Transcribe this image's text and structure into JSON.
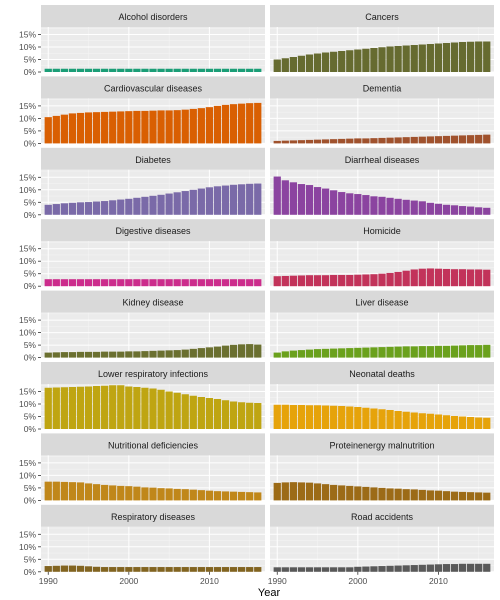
{
  "chart_data": {
    "type": "bar",
    "xlabel": "Year",
    "ylabel": "",
    "ylim": [
      0,
      18
    ],
    "y_ticks": [
      0,
      5,
      10,
      15
    ],
    "y_tick_labels": [
      "0%",
      "5%",
      "10%",
      "15%"
    ],
    "x_ticks": [
      1990,
      2000,
      2010
    ],
    "x_tick_labels": [
      "1990",
      "2000",
      "2010"
    ],
    "x": [
      1990,
      1991,
      1992,
      1993,
      1994,
      1995,
      1996,
      1997,
      1998,
      1999,
      2000,
      2001,
      2002,
      2003,
      2004,
      2005,
      2006,
      2007,
      2008,
      2009,
      2010,
      2011,
      2012,
      2013,
      2014,
      2015,
      2016
    ],
    "grid": true,
    "facet_layout": "8 rows x 2 columns",
    "series": [
      {
        "name": "Alcohol disorders",
        "color": "#1b9e77",
        "values": [
          1.3,
          1.3,
          1.3,
          1.3,
          1.3,
          1.3,
          1.3,
          1.3,
          1.3,
          1.3,
          1.3,
          1.3,
          1.3,
          1.3,
          1.3,
          1.3,
          1.3,
          1.3,
          1.3,
          1.3,
          1.3,
          1.3,
          1.3,
          1.3,
          1.3,
          1.3,
          1.3
        ]
      },
      {
        "name": "Cancers",
        "color": "#666b30",
        "values": [
          5.0,
          5.5,
          6.0,
          6.5,
          7.0,
          7.4,
          7.8,
          8.1,
          8.4,
          8.7,
          9.0,
          9.3,
          9.6,
          9.9,
          10.2,
          10.4,
          10.6,
          10.8,
          11.0,
          11.2,
          11.4,
          11.6,
          11.8,
          12.0,
          12.1,
          12.2,
          12.2
        ]
      },
      {
        "name": "Cardiovascular diseases",
        "color": "#d95f02",
        "values": [
          10.5,
          11.0,
          11.5,
          12.0,
          12.2,
          12.4,
          12.5,
          12.6,
          12.7,
          12.8,
          12.9,
          13.0,
          13.0,
          13.1,
          13.2,
          13.2,
          13.3,
          13.5,
          13.8,
          14.1,
          14.5,
          15.0,
          15.4,
          15.7,
          15.9,
          16.1,
          16.2
        ]
      },
      {
        "name": "Dementia",
        "color": "#a0522d",
        "values": [
          1.0,
          1.1,
          1.2,
          1.3,
          1.4,
          1.5,
          1.6,
          1.7,
          1.8,
          1.9,
          2.0,
          2.0,
          2.1,
          2.2,
          2.3,
          2.4,
          2.5,
          2.6,
          2.7,
          2.8,
          2.9,
          3.0,
          3.1,
          3.2,
          3.3,
          3.4,
          3.5
        ]
      },
      {
        "name": "Diabetes",
        "color": "#7a6aa8",
        "values": [
          4.0,
          4.3,
          4.6,
          4.8,
          5.0,
          5.1,
          5.3,
          5.5,
          5.8,
          6.1,
          6.4,
          6.8,
          7.2,
          7.6,
          8.0,
          8.5,
          9.0,
          9.5,
          10.0,
          10.5,
          11.0,
          11.4,
          11.7,
          12.0,
          12.2,
          12.4,
          12.5
        ]
      },
      {
        "name": "Diarrheal diseases",
        "color": "#8b44a0",
        "values": [
          15.3,
          13.8,
          13.0,
          12.3,
          11.9,
          11.1,
          10.5,
          9.8,
          9.1,
          8.6,
          8.3,
          7.9,
          7.4,
          7.2,
          6.8,
          6.4,
          6.0,
          5.7,
          5.4,
          4.8,
          4.4,
          4.0,
          3.8,
          3.5,
          3.3,
          3.0,
          2.8
        ]
      },
      {
        "name": "Digestive diseases",
        "color": "#cc2c8c",
        "values": [
          2.8,
          2.8,
          2.8,
          2.8,
          2.8,
          2.8,
          2.8,
          2.8,
          2.8,
          2.8,
          2.8,
          2.8,
          2.8,
          2.8,
          2.8,
          2.8,
          2.8,
          2.8,
          2.8,
          2.8,
          2.8,
          2.8,
          2.8,
          2.8,
          2.8,
          2.8,
          2.8
        ]
      },
      {
        "name": "Homicide",
        "color": "#c2335a",
        "values": [
          4.0,
          4.1,
          4.2,
          4.3,
          4.4,
          4.4,
          4.4,
          4.5,
          4.5,
          4.5,
          4.6,
          4.7,
          4.8,
          5.0,
          5.3,
          5.7,
          6.2,
          6.7,
          7.0,
          7.1,
          7.0,
          6.9,
          6.8,
          6.8,
          6.7,
          6.7,
          6.6
        ]
      },
      {
        "name": "Kidney disease",
        "color": "#6b7030",
        "values": [
          2.0,
          2.1,
          2.2,
          2.2,
          2.3,
          2.3,
          2.3,
          2.4,
          2.4,
          2.4,
          2.5,
          2.5,
          2.6,
          2.7,
          2.8,
          2.9,
          3.0,
          3.2,
          3.5,
          3.8,
          4.1,
          4.4,
          4.8,
          5.1,
          5.3,
          5.4,
          5.2
        ]
      },
      {
        "name": "Liver disease",
        "color": "#6aa11c",
        "values": [
          2.0,
          2.5,
          2.8,
          3.0,
          3.2,
          3.4,
          3.5,
          3.6,
          3.7,
          3.8,
          3.9,
          4.0,
          4.1,
          4.2,
          4.3,
          4.4,
          4.5,
          4.5,
          4.6,
          4.6,
          4.7,
          4.7,
          4.8,
          4.9,
          5.0,
          5.0,
          5.1
        ]
      },
      {
        "name": "Lower respiratory infections",
        "color": "#bfa512",
        "values": [
          16.5,
          16.6,
          16.7,
          16.8,
          16.9,
          17.0,
          17.2,
          17.3,
          17.5,
          17.5,
          17.0,
          16.8,
          16.5,
          16.2,
          15.7,
          15.0,
          14.5,
          13.9,
          13.3,
          12.8,
          12.4,
          12.0,
          11.5,
          11.0,
          10.7,
          10.5,
          10.4
        ]
      },
      {
        "name": "Neonatal deaths",
        "color": "#e6a30a",
        "values": [
          9.7,
          9.7,
          9.6,
          9.6,
          9.5,
          9.5,
          9.4,
          9.3,
          9.2,
          9.0,
          8.8,
          8.5,
          8.2,
          7.9,
          7.6,
          7.2,
          6.9,
          6.6,
          6.3,
          6.1,
          5.8,
          5.5,
          5.2,
          5.0,
          4.8,
          4.6,
          4.5
        ]
      },
      {
        "name": "Nutritional deficiencies",
        "color": "#c0871a",
        "values": [
          7.5,
          7.5,
          7.4,
          7.3,
          7.2,
          6.8,
          6.5,
          6.2,
          6.0,
          5.8,
          5.7,
          5.5,
          5.2,
          5.1,
          4.9,
          4.8,
          4.6,
          4.5,
          4.3,
          4.1,
          3.9,
          3.7,
          3.6,
          3.5,
          3.4,
          3.3,
          3.2
        ]
      },
      {
        "name": "Proteinenergy malnutrition",
        "color": "#9c6b17",
        "values": [
          7.0,
          7.2,
          7.3,
          7.2,
          7.1,
          6.8,
          6.5,
          6.2,
          6.0,
          5.8,
          5.6,
          5.4,
          5.2,
          5.0,
          4.8,
          4.7,
          4.5,
          4.4,
          4.2,
          4.0,
          3.9,
          3.7,
          3.5,
          3.4,
          3.3,
          3.2,
          3.1
        ]
      },
      {
        "name": "Respiratory diseases",
        "color": "#826420",
        "values": [
          2.3,
          2.4,
          2.5,
          2.5,
          2.4,
          2.2,
          2.0,
          1.9,
          1.9,
          1.9,
          1.9,
          1.9,
          1.9,
          1.9,
          1.9,
          1.9,
          1.9,
          1.9,
          1.9,
          1.9,
          1.9,
          1.9,
          1.9,
          1.9,
          1.9,
          1.9,
          1.9
        ]
      },
      {
        "name": "Road accidents",
        "color": "#595959",
        "values": [
          1.8,
          1.8,
          1.8,
          1.8,
          1.8,
          1.8,
          1.8,
          1.8,
          1.8,
          1.8,
          2.0,
          2.1,
          2.2,
          2.3,
          2.4,
          2.5,
          2.6,
          2.7,
          2.8,
          2.9,
          3.0,
          3.1,
          3.1,
          3.2,
          3.2,
          3.2,
          3.2
        ]
      }
    ]
  }
}
